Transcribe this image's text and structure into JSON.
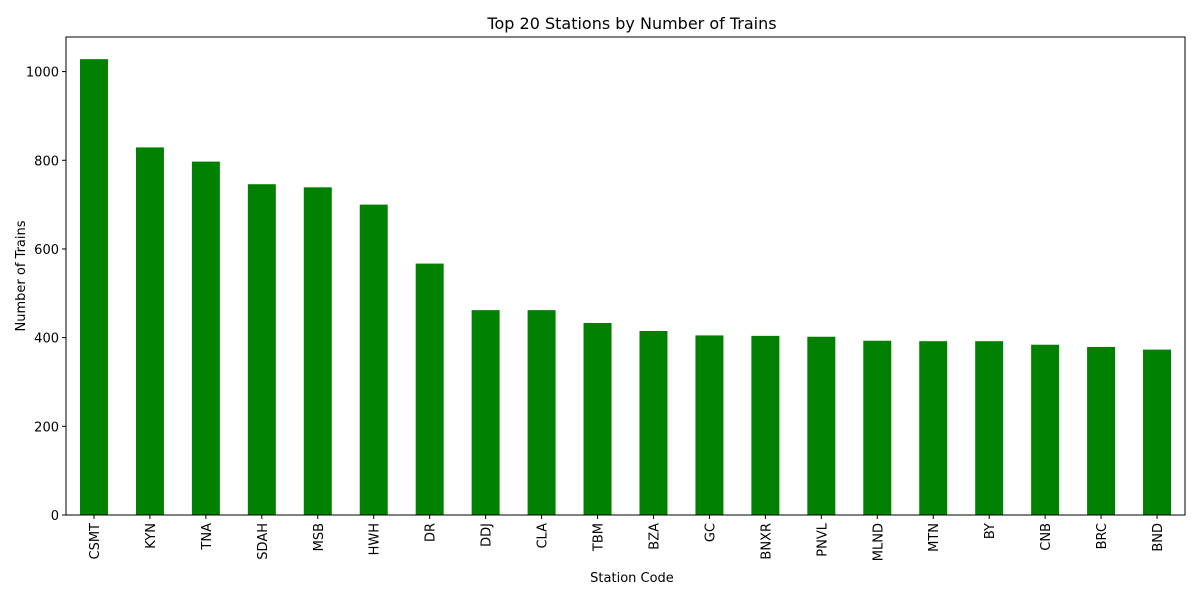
{
  "chart_data": {
    "type": "bar",
    "title": "Top 20 Stations by Number of Trains",
    "xlabel": "Station Code",
    "ylabel": "Number of Trains",
    "categories": [
      "CSMT",
      "KYN",
      "TNA",
      "SDAH",
      "MSB",
      "HWH",
      "DR",
      "DDJ",
      "CLA",
      "TBM",
      "BZA",
      "GC",
      "BNXR",
      "PNVL",
      "MLND",
      "MTN",
      "BY",
      "CNB",
      "BRC",
      "BND"
    ],
    "values": [
      1028,
      829,
      797,
      746,
      739,
      700,
      567,
      462,
      462,
      433,
      415,
      405,
      404,
      402,
      393,
      392,
      392,
      384,
      379,
      373
    ],
    "ylim": [
      0,
      1078
    ],
    "yticks": [
      0,
      200,
      400,
      600,
      800,
      1000
    ],
    "bar_color": "#008000",
    "grid": false,
    "legend": false
  }
}
